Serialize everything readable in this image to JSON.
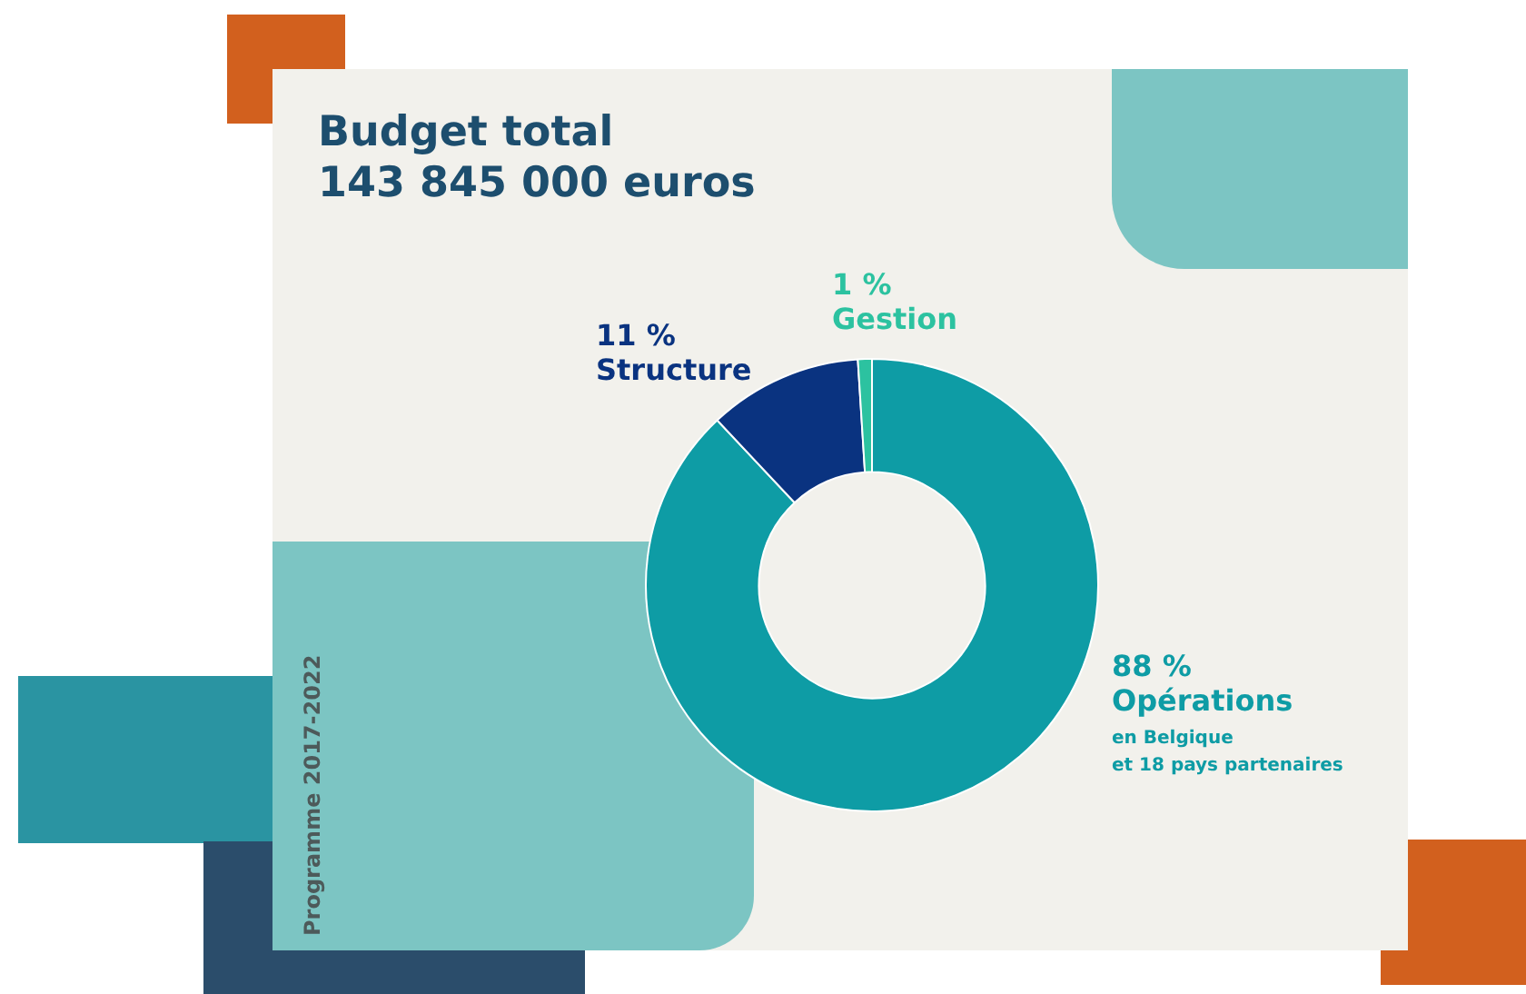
{
  "chart_data": {
    "type": "donut",
    "title": "Budget total",
    "subtitle": "143 845 000 euros",
    "categories": [
      "Opérations",
      "Structure",
      "Gestion"
    ],
    "values": [
      88,
      11,
      1
    ],
    "colors": [
      "#0e9ca5",
      "#0a3380",
      "#2cc2a0"
    ],
    "value_labels": [
      "88 %",
      "11 %",
      "1 %"
    ],
    "annotations": [
      "en Belgique",
      "et 18 pays partenaires",
      "Programme 2017-2022"
    ]
  }
}
